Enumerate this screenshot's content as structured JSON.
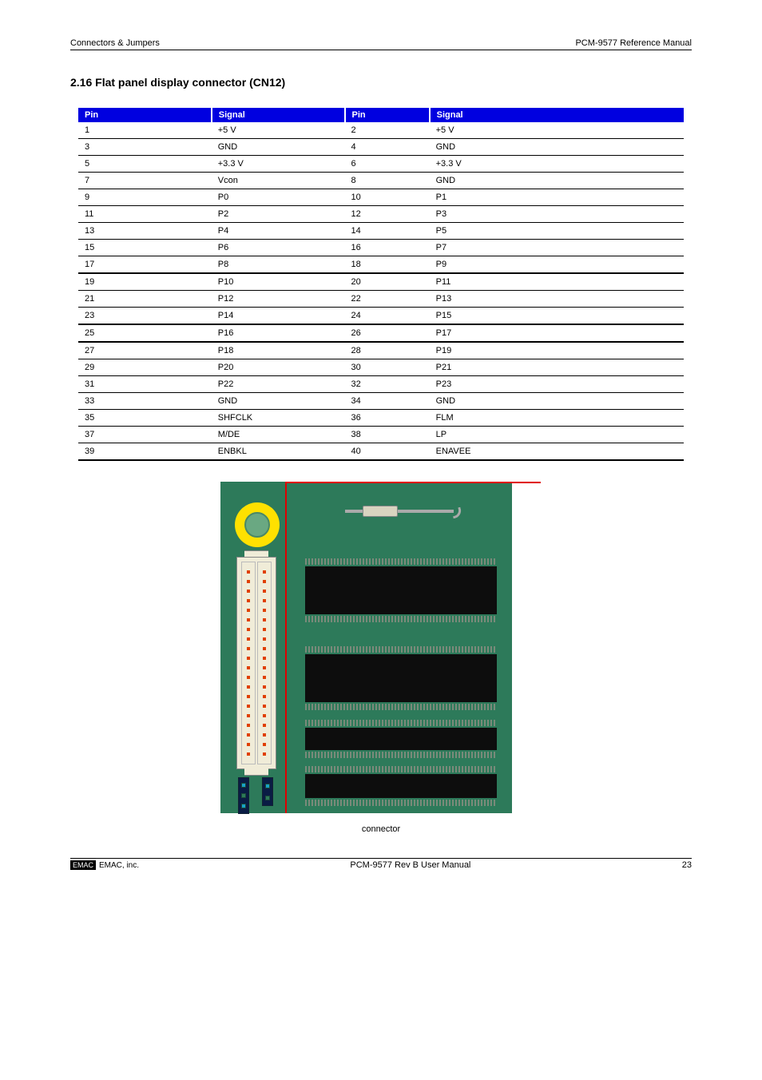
{
  "header": {
    "left": "Connectors & Jumpers",
    "right": "PCM-9577 Reference Manual"
  },
  "section_title": "2.16 Flat panel display connector (CN12)",
  "table": {
    "head": [
      "Pin",
      "Signal",
      "Pin",
      "Signal"
    ],
    "rows": [
      [
        "1",
        "+5 V",
        "2",
        "+5 V"
      ],
      [
        "3",
        "GND",
        "4",
        "GND"
      ],
      [
        "5",
        "+3.3 V",
        "6",
        "+3.3 V"
      ],
      [
        "7",
        "Vcon",
        "8",
        "GND"
      ],
      [
        "9",
        "P0",
        "10",
        "P1"
      ],
      [
        "11",
        "P2",
        "12",
        "P3"
      ],
      [
        "13",
        "P4",
        "14",
        "P5"
      ],
      [
        "15",
        "P6",
        "16",
        "P7"
      ],
      [
        "17",
        "P8",
        "18",
        "P9"
      ],
      [
        "19",
        "P10",
        "20",
        "P11"
      ],
      [
        "21",
        "P12",
        "22",
        "P13"
      ],
      [
        "23",
        "P14",
        "24",
        "P15"
      ],
      [
        "25",
        "P16",
        "26",
        "P17"
      ],
      [
        "27",
        "P18",
        "28",
        "P19"
      ],
      [
        "29",
        "P20",
        "30",
        "P21"
      ],
      [
        "31",
        "P22",
        "32",
        "P23"
      ],
      [
        "33",
        "GND",
        "34",
        "GND"
      ],
      [
        "35",
        "SHFCLK",
        "36",
        "FLM"
      ],
      [
        "37",
        "M/DE",
        "38",
        "LP"
      ],
      [
        "39",
        "ENBKL",
        "40",
        "ENAVEE"
      ]
    ]
  },
  "figure": {
    "board_color": "#2d7a5a",
    "highlight_color": "#e00000",
    "ring_color": "#ffe100",
    "pcb_hole_color": "#6aa882",
    "connector_color": "#f0ecd8",
    "pin_color": "#e04000",
    "chip_color": "#0d0d0d",
    "jumper_color": "#0a1c44",
    "jumper_accent_color": "#17a2c8",
    "lead_color": "#7a8a7a",
    "caption": "connector"
  },
  "footer": {
    "badge": "EMAC",
    "company": "EMAC, inc.",
    "center": "PCM-9577 Rev B User Manual",
    "page": "23"
  }
}
